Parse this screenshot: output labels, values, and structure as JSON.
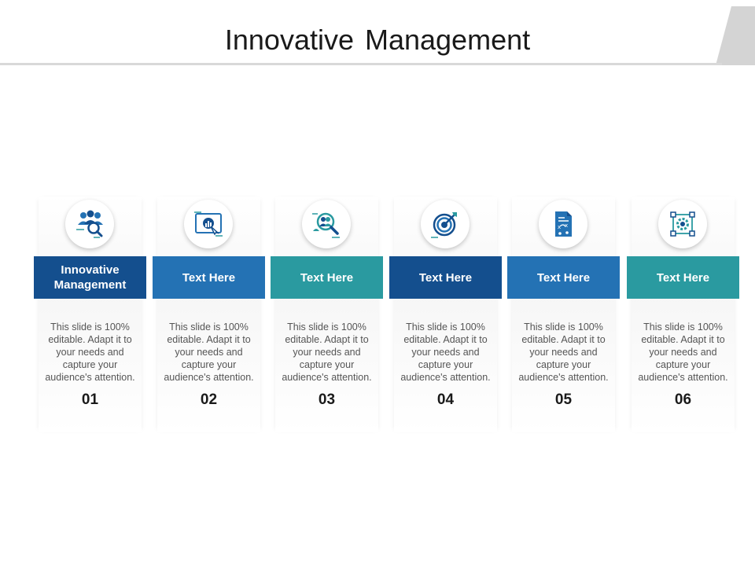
{
  "slide": {
    "title": "Innovative Management"
  },
  "colors": {
    "dark_blue": "#144f8e",
    "mid_blue": "#2472b4",
    "teal": "#2a9aa0"
  },
  "steps": [
    {
      "label": "Innovative Management",
      "desc": "This slide is 100% editable. Adapt it to your needs and capture your audience's attention.",
      "number": "01",
      "color": "#144f8e",
      "icon": "team-search-icon"
    },
    {
      "label": "Text Here",
      "desc": "This slide is 100% editable. Adapt it to your needs and capture your audience's attention.",
      "number": "02",
      "color": "#2472b4",
      "icon": "presentation-screen-icon"
    },
    {
      "label": "Text Here",
      "desc": "This slide is 100% editable. Adapt it to your needs and capture your audience's attention.",
      "number": "03",
      "color": "#2a9aa0",
      "icon": "people-magnifier-icon"
    },
    {
      "label": "Text Here",
      "desc": "This slide is 100% editable. Adapt it to your needs and capture your audience's attention.",
      "number": "04",
      "color": "#144f8e",
      "icon": "target-arrow-icon"
    },
    {
      "label": "Text Here",
      "desc": "This slide is 100% editable. Adapt it to your needs and capture your audience's attention.",
      "number": "05",
      "color": "#2472b4",
      "icon": "strategy-document-icon"
    },
    {
      "label": "Text Here",
      "desc": "This slide is 100% editable. Adapt it to your needs and capture your audience's attention.",
      "number": "06",
      "color": "#2a9aa0",
      "icon": "gear-frame-icon"
    }
  ]
}
